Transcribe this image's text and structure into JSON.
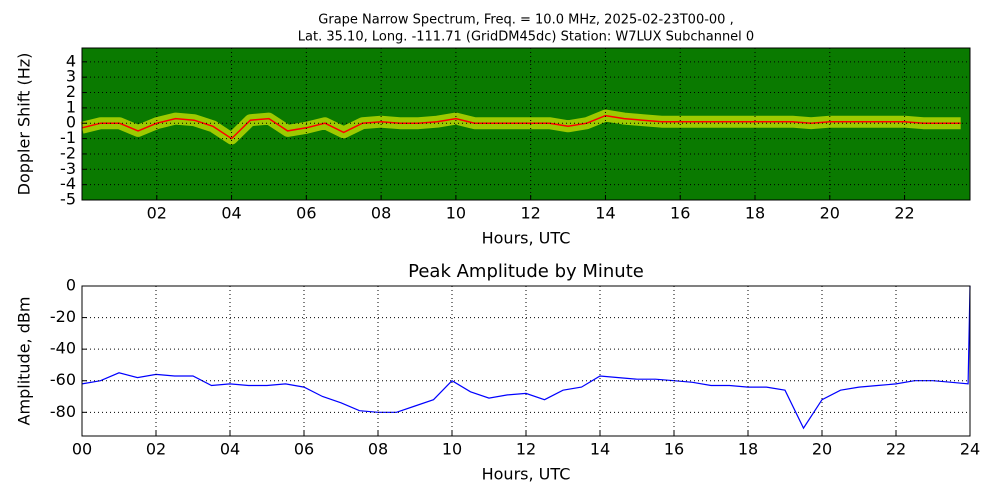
{
  "chart_data": [
    {
      "type": "spectrogram",
      "title": [
        "Grape Narrow Spectrum, Freq. = 10.0 MHz, 2025-02-23T00-00 ,",
        "Lat.  35.10, Long. -111.71 (GridDM45dc) Station: W7LUX Subchannel 0"
      ],
      "xlabel": "Hours, UTC",
      "ylabel": "Doppler Shift (Hz)",
      "x": [
        0,
        0.5,
        1,
        1.5,
        2,
        2.5,
        3,
        3.5,
        4,
        4.5,
        5,
        5.5,
        6,
        6.5,
        7,
        7.5,
        8,
        8.5,
        9,
        9.5,
        10,
        10.5,
        11,
        11.5,
        12,
        12.5,
        13,
        13.5,
        14,
        14.5,
        15,
        15.5,
        16,
        16.5,
        17,
        17.5,
        18,
        18.5,
        19,
        19.5,
        20,
        20.5,
        21,
        21.5,
        22,
        22.5,
        23,
        23.5
      ],
      "values": [
        -0.3,
        0,
        0,
        -0.5,
        0,
        0.3,
        0.2,
        -0.2,
        -1,
        0.2,
        0.3,
        -0.5,
        -0.3,
        0,
        -0.6,
        0,
        0.1,
        0,
        0,
        0.1,
        0.3,
        0,
        0,
        0,
        0,
        0,
        -0.2,
        0,
        0.5,
        0.3,
        0.2,
        0.1,
        0.1,
        0.1,
        0.1,
        0.1,
        0.1,
        0.1,
        0.1,
        0,
        0.1,
        0.1,
        0.1,
        0.1,
        0.1,
        0,
        0,
        0
      ],
      "background_color": "#0a7a00",
      "band_color": "#ffff00",
      "color": "#ff0000",
      "xlim": [
        0,
        23.75
      ],
      "ylim": [
        -5,
        4.9
      ],
      "xticks": [
        {
          "value": 2,
          "label": "02"
        },
        {
          "value": 4,
          "label": "04"
        },
        {
          "value": 6,
          "label": "06"
        },
        {
          "value": 8,
          "label": "08"
        },
        {
          "value": 10,
          "label": "10"
        },
        {
          "value": 12,
          "label": "12"
        },
        {
          "value": 14,
          "label": "14"
        },
        {
          "value": 16,
          "label": "16"
        },
        {
          "value": 18,
          "label": "18"
        },
        {
          "value": 20,
          "label": "20"
        },
        {
          "value": 22,
          "label": "22"
        }
      ],
      "yticks": [
        -5,
        -4,
        -3,
        -2,
        -1,
        0,
        1,
        2,
        3,
        4
      ],
      "grid": true
    },
    {
      "type": "line",
      "title": [
        "Peak Amplitude by Minute"
      ],
      "xlabel": "Hours, UTC",
      "ylabel": "Amplitude, dBm",
      "x": [
        0,
        0.5,
        1,
        1.5,
        2,
        2.5,
        3,
        3.5,
        4,
        4.5,
        5,
        5.5,
        6,
        6.5,
        7,
        7.5,
        8,
        8.5,
        9,
        9.5,
        10,
        10.5,
        11,
        11.5,
        12,
        12.5,
        13,
        13.5,
        14,
        14.5,
        15,
        15.5,
        16,
        16.5,
        17,
        17.5,
        18,
        18.5,
        19,
        19.5,
        20,
        20.5,
        21,
        21.5,
        22,
        22.5,
        23,
        23.5,
        23.95,
        24
      ],
      "values": [
        -62,
        -60,
        -55,
        -58,
        -56,
        -57,
        -57,
        -63,
        -62,
        -63,
        -63,
        -62,
        -64,
        -70,
        -74,
        -79,
        -80,
        -80,
        -76,
        -72,
        -60,
        -67,
        -71,
        -69,
        -68,
        -72,
        -66,
        -64,
        -57,
        -58,
        -59,
        -59,
        -60,
        -61,
        -63,
        -63,
        -64,
        -64,
        -66,
        -90,
        -72,
        -66,
        -64,
        -63,
        -62,
        -60,
        -60,
        -61,
        -62,
        0
      ],
      "color": "#0000ff",
      "xlim": [
        0,
        24
      ],
      "ylim": [
        -95,
        0
      ],
      "xticks": [
        {
          "value": 0,
          "label": "00"
        },
        {
          "value": 2,
          "label": "02"
        },
        {
          "value": 4,
          "label": "04"
        },
        {
          "value": 6,
          "label": "06"
        },
        {
          "value": 8,
          "label": "08"
        },
        {
          "value": 10,
          "label": "10"
        },
        {
          "value": 12,
          "label": "12"
        },
        {
          "value": 14,
          "label": "14"
        },
        {
          "value": 16,
          "label": "16"
        },
        {
          "value": 18,
          "label": "18"
        },
        {
          "value": 20,
          "label": "20"
        },
        {
          "value": 22,
          "label": "22"
        },
        {
          "value": 24,
          "label": "24"
        }
      ],
      "yticks": [
        -80,
        -60,
        -40,
        -20,
        0
      ],
      "grid": true
    }
  ]
}
